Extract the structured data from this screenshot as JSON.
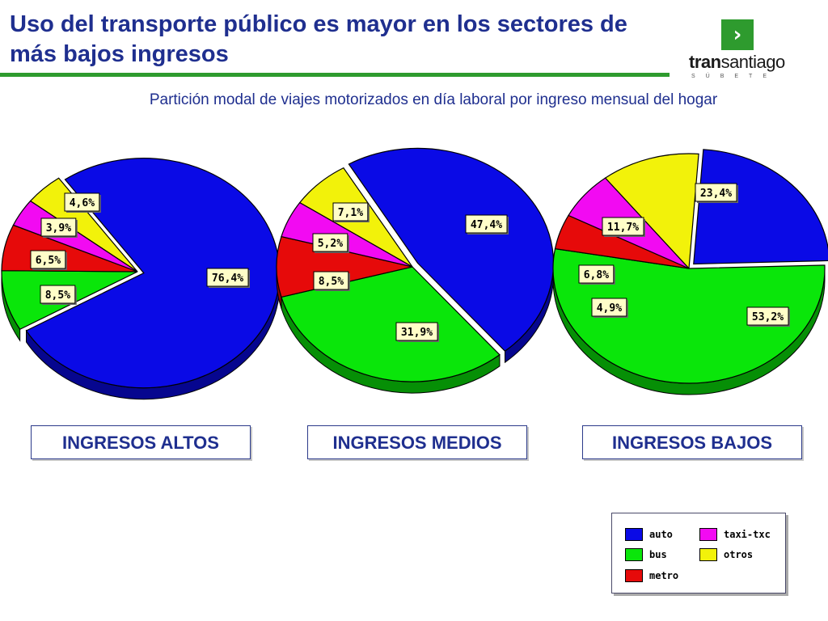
{
  "slide": {
    "title": "Uso del transporte público es mayor en los sectores de más bajos ingresos",
    "subtitle": "Partición modal de viajes motorizados en día laboral por ingreso mensual del hogar"
  },
  "logo": {
    "arrow": "›",
    "word_bold": "tran",
    "word_rest": "santiago",
    "tagline": "SÚBETE"
  },
  "colors": {
    "auto": "#0a0ae6",
    "bus": "#0ae60a",
    "metro": "#e60a0a",
    "taxi": "#f20af2",
    "otros": "#f2f20a",
    "accent": "#2e9b2e",
    "title": "#1f2f8f"
  },
  "chart_data": [
    {
      "type": "pie",
      "title": "INGRESOS ALTOS",
      "slices": [
        {
          "name": "auto",
          "value": 76.4,
          "label": "76,4%"
        },
        {
          "name": "bus",
          "value": 8.5,
          "label": "8,5%"
        },
        {
          "name": "metro",
          "value": 6.5,
          "label": "6,5%"
        },
        {
          "name": "taxi-txc",
          "value": 3.9,
          "label": "3,9%"
        },
        {
          "name": "otros",
          "value": 4.6,
          "label": "4,6%"
        }
      ]
    },
    {
      "type": "pie",
      "title": "INGRESOS MEDIOS",
      "slices": [
        {
          "name": "auto",
          "value": 47.4,
          "label": "47,4%"
        },
        {
          "name": "bus",
          "value": 31.9,
          "label": "31,9%"
        },
        {
          "name": "metro",
          "value": 8.5,
          "label": "8,5%"
        },
        {
          "name": "taxi-txc",
          "value": 5.2,
          "label": "5,2%"
        },
        {
          "name": "otros",
          "value": 7.1,
          "label": "7,1%"
        }
      ]
    },
    {
      "type": "pie",
      "title": "INGRESOS BAJOS",
      "slices": [
        {
          "name": "auto",
          "value": 23.4,
          "label": "23,4%"
        },
        {
          "name": "bus",
          "value": 53.2,
          "label": "53,2%"
        },
        {
          "name": "metro",
          "value": 4.9,
          "label": "4,9%"
        },
        {
          "name": "taxi-txc",
          "value": 6.8,
          "label": "6,8%"
        },
        {
          "name": "otros",
          "value": 11.7,
          "label": "11,7%"
        }
      ]
    }
  ],
  "legend": {
    "position": "bottom-right",
    "items": [
      {
        "key": "auto",
        "label": "auto"
      },
      {
        "key": "taxi",
        "label": "taxi-txc"
      },
      {
        "key": "bus",
        "label": "bus"
      },
      {
        "key": "otros",
        "label": "otros"
      },
      {
        "key": "metro",
        "label": "metro"
      }
    ]
  }
}
